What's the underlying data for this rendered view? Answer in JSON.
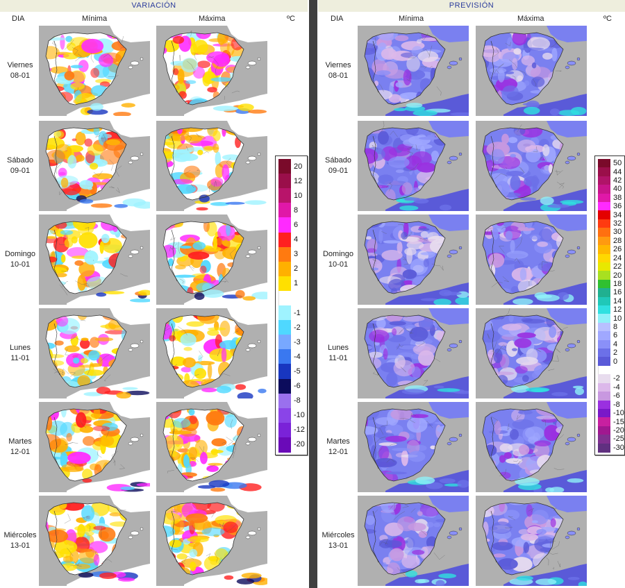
{
  "left": {
    "title": "VARIACIÓN",
    "headers": {
      "dia": "DIA",
      "min": "Mínima",
      "max": "Máxima",
      "unit": "ºC"
    }
  },
  "right": {
    "title": "PREVISIÓN",
    "headers": {
      "dia": "DIA",
      "min": "Mínima",
      "max": "Máxima",
      "unit": "ºC"
    }
  },
  "days": [
    {
      "name": "Viernes",
      "date": "08-01"
    },
    {
      "name": "Sábado",
      "date": "09-01"
    },
    {
      "name": "Domingo",
      "date": "10-01"
    },
    {
      "name": "Lunes",
      "date": "11-01"
    },
    {
      "name": "Martes",
      "date": "12-01"
    },
    {
      "name": "Miércoles",
      "date": "13-01"
    }
  ],
  "variation_legend": [
    {
      "label": "20",
      "color": "#7a0a2a"
    },
    {
      "label": "12",
      "color": "#9a0f4a"
    },
    {
      "label": "10",
      "color": "#b8146a"
    },
    {
      "label": "8",
      "color": "#e018a8"
    },
    {
      "label": "6",
      "color": "#ff2aff"
    },
    {
      "label": "4",
      "color": "#ff2020"
    },
    {
      "label": "3",
      "color": "#ff7a10"
    },
    {
      "label": "2",
      "color": "#ffb000"
    },
    {
      "label": "1",
      "color": "#ffe000"
    },
    {
      "label": "",
      "color": "#ffffff"
    },
    {
      "label": "-1",
      "color": "#9ff3ff"
    },
    {
      "label": "-2",
      "color": "#4fd8ff"
    },
    {
      "label": "-3",
      "color": "#78a8ff"
    },
    {
      "label": "-4",
      "color": "#3a78f0"
    },
    {
      "label": "-5",
      "color": "#1836c0"
    },
    {
      "label": "-6",
      "color": "#0c0c5c"
    },
    {
      "label": "-8",
      "color": "#9a70ee"
    },
    {
      "label": "-10",
      "color": "#8a44e8"
    },
    {
      "label": "-12",
      "color": "#7a22d8"
    },
    {
      "label": "-20",
      "color": "#6a0ab8"
    }
  ],
  "forecast_legend": [
    {
      "label": "50",
      "color": "#7a0a2a"
    },
    {
      "label": "44",
      "color": "#9a0f4a"
    },
    {
      "label": "42",
      "color": "#b01468"
    },
    {
      "label": "40",
      "color": "#c8158a"
    },
    {
      "label": "38",
      "color": "#e018a8"
    },
    {
      "label": "36",
      "color": "#ff2aff"
    },
    {
      "label": "34",
      "color": "#e40000"
    },
    {
      "label": "32",
      "color": "#ff3a10"
    },
    {
      "label": "30",
      "color": "#ff7010"
    },
    {
      "label": "28",
      "color": "#ff9a10"
    },
    {
      "label": "26",
      "color": "#ffb800"
    },
    {
      "label": "24",
      "color": "#ffd800"
    },
    {
      "label": "22",
      "color": "#e8e800"
    },
    {
      "label": "20",
      "color": "#a8e020"
    },
    {
      "label": "18",
      "color": "#30c030"
    },
    {
      "label": "16",
      "color": "#20b090"
    },
    {
      "label": "14",
      "color": "#20c8b8"
    },
    {
      "label": "12",
      "color": "#30e0e0"
    },
    {
      "label": "10",
      "color": "#90f0f8"
    },
    {
      "label": "8",
      "color": "#b8c0ff"
    },
    {
      "label": "6",
      "color": "#a0a8ff"
    },
    {
      "label": "4",
      "color": "#8a90f8"
    },
    {
      "label": "2",
      "color": "#6c70e8"
    },
    {
      "label": "0",
      "color": "#5a5ad8"
    },
    {
      "label": "",
      "color": "#ffffff"
    },
    {
      "label": "-2",
      "color": "#e8dcee"
    },
    {
      "label": "-4",
      "color": "#dcb8ea"
    },
    {
      "label": "-6",
      "color": "#c898e0"
    },
    {
      "label": "-8",
      "color": "#9a30e0"
    },
    {
      "label": "-10",
      "color": "#7a18c8"
    },
    {
      "label": "-15",
      "color": "#c820a0"
    },
    {
      "label": "-20",
      "color": "#a01890"
    },
    {
      "label": "-25",
      "color": "#803090"
    },
    {
      "label": "-30",
      "color": "#603080"
    }
  ],
  "palettes": {
    "variation_warm": [
      "#ffe000",
      "#ffb000",
      "#ff7a10",
      "#ff2020",
      "#ff2aff"
    ],
    "variation_cold": [
      "#9ff3ff",
      "#4fd8ff",
      "#3a78f0",
      "#1836c0",
      "#0c0c5c"
    ],
    "forecast_cold": [
      "#e8dcee",
      "#dcb8ea",
      "#c898e0",
      "#9a30e0"
    ],
    "forecast_mild": [
      "#8a90f8",
      "#6c70e8",
      "#5a5ad8",
      "#a0a8ff"
    ],
    "forecast_sea": [
      "#90f0f8",
      "#30e0e0",
      "#6c70e8"
    ]
  }
}
